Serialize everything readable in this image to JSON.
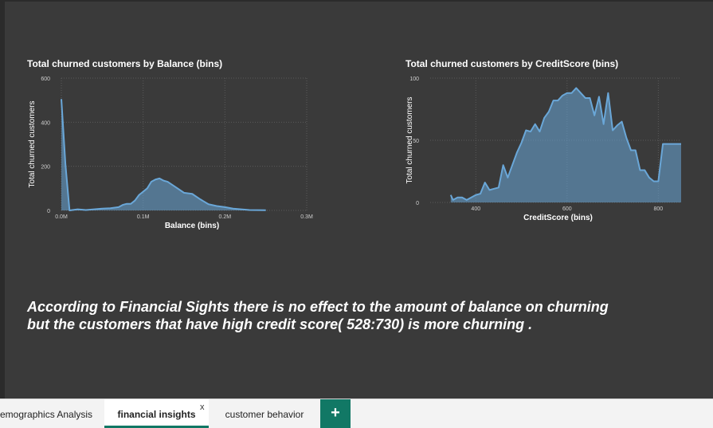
{
  "charts": {
    "balance": {
      "title": "Total churned customers by Balance (bins)",
      "xlabel": "Balance (bins)",
      "ylabel": "Total churned customers",
      "xticks": [
        "0.0M",
        "0.1M",
        "0.2M",
        "0.3M"
      ],
      "yticks": [
        "0",
        "200",
        "400",
        "600"
      ]
    },
    "credit": {
      "title": "Total churned customers by CreditScore (bins)",
      "xlabel": "CreditScore (bins)",
      "ylabel": "Total churned customers",
      "xticks": [
        "400",
        "600",
        "800"
      ],
      "yticks": [
        "0",
        "50",
        "100"
      ]
    }
  },
  "chart_data": [
    {
      "type": "area",
      "title": "Total churned customers by Balance (bins)",
      "xlabel": "Balance (bins)",
      "ylabel": "Total churned customers",
      "xlim": [
        0,
        0.3
      ],
      "ylim": [
        0,
        600
      ],
      "x": [
        0,
        0.005,
        0.01,
        0.02,
        0.03,
        0.04,
        0.05,
        0.06,
        0.07,
        0.075,
        0.08,
        0.085,
        0.09,
        0.095,
        0.1,
        0.105,
        0.11,
        0.115,
        0.12,
        0.125,
        0.13,
        0.14,
        0.15,
        0.16,
        0.17,
        0.18,
        0.19,
        0.2,
        0.21,
        0.22,
        0.23,
        0.25
      ],
      "y": [
        505,
        210,
        0,
        5,
        2,
        5,
        8,
        10,
        15,
        25,
        30,
        30,
        45,
        70,
        85,
        100,
        130,
        140,
        145,
        135,
        130,
        105,
        80,
        75,
        50,
        28,
        20,
        15,
        8,
        5,
        2,
        1
      ],
      "color": "#6aa7d8"
    },
    {
      "type": "area",
      "title": "Total churned customers by CreditScore (bins)",
      "xlabel": "CreditScore (bins)",
      "ylabel": "Total churned customers",
      "xlim": [
        300,
        850
      ],
      "ylim": [
        0,
        100
      ],
      "x": [
        345,
        350,
        360,
        370,
        380,
        390,
        400,
        410,
        420,
        430,
        440,
        450,
        460,
        470,
        480,
        490,
        500,
        510,
        520,
        530,
        540,
        550,
        560,
        570,
        580,
        590,
        600,
        610,
        620,
        630,
        640,
        650,
        660,
        670,
        680,
        690,
        700,
        710,
        720,
        730,
        740,
        750,
        760,
        770,
        780,
        790,
        800,
        810,
        820,
        830,
        840,
        850
      ],
      "y": [
        6,
        2,
        4,
        4,
        2,
        4,
        6,
        7,
        16,
        10,
        11,
        12,
        30,
        20,
        30,
        40,
        48,
        58,
        57,
        63,
        57,
        68,
        73,
        82,
        82,
        86,
        88,
        88,
        92,
        88,
        84,
        84,
        70,
        85,
        63,
        88,
        58,
        62,
        65,
        52,
        42,
        42,
        26,
        26,
        20,
        17,
        17,
        47,
        47,
        47,
        47,
        47
      ],
      "color": "#6aa7d8"
    }
  ],
  "insight": {
    "line1": "According to Financial Sights there is no effect to the amount of balance on churning",
    "line2": "but the customers that have high credit score( 528:730) is more churning ."
  },
  "tabs": [
    {
      "label": "emographics Analysis"
    },
    {
      "label": "financial insights"
    },
    {
      "label": "customer behavior"
    }
  ],
  "tab_close": "x",
  "add_tab_label": "+"
}
